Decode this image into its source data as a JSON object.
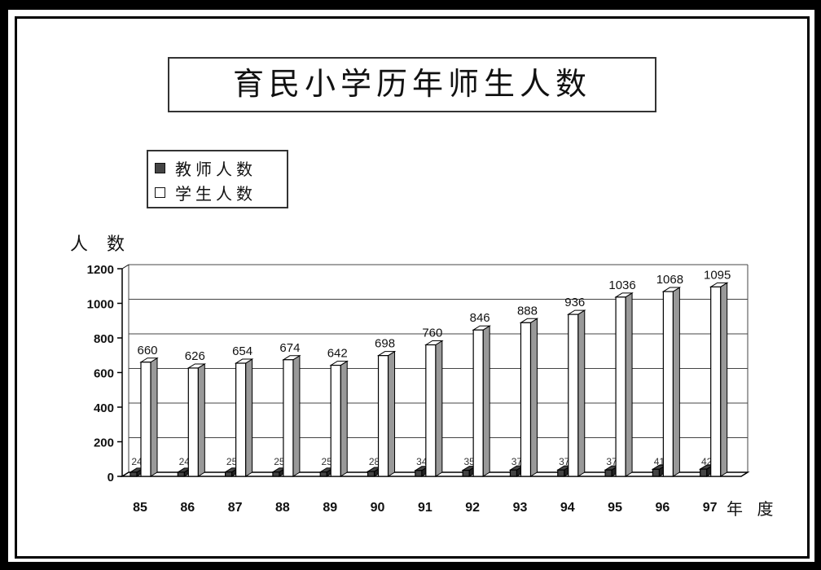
{
  "chart_data": {
    "type": "bar",
    "title": "育民小学历年师生人数",
    "ylabel": "人 数",
    "xlabel": "年 度",
    "categories": [
      "85",
      "86",
      "87",
      "88",
      "89",
      "90",
      "91",
      "92",
      "93",
      "94",
      "95",
      "96",
      "97"
    ],
    "series": [
      {
        "name": "教师人数",
        "values": [
          24,
          24,
          25,
          25,
          25,
          28,
          34,
          35,
          37,
          37,
          37,
          41,
          42
        ],
        "color": "#444444"
      },
      {
        "name": "学生人数",
        "values": [
          660,
          626,
          654,
          674,
          642,
          698,
          760,
          846,
          888,
          936,
          1036,
          1068,
          1095
        ],
        "color": "#ffffff"
      }
    ],
    "ylim": [
      0,
      1200
    ],
    "yticks": [
      "0",
      "200",
      "400",
      "600",
      "800",
      "1000",
      "1200"
    ],
    "grid": true,
    "legend_position": "top-left"
  }
}
